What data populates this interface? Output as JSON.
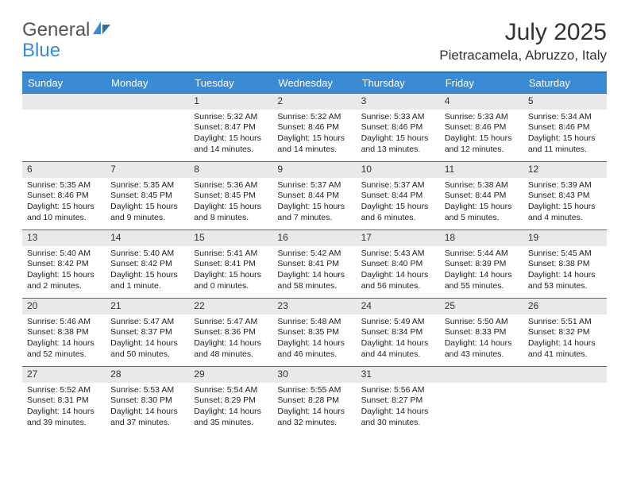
{
  "logo": {
    "text1": "General",
    "text2": "Blue"
  },
  "title": "July 2025",
  "location": "Pietracamela, Abruzzo, Italy",
  "colors": {
    "header_bg": "#3b8bd4",
    "header_border": "#2b6fb0",
    "daynum_bg": "#e9e9e9",
    "logo_blue": "#3b8bd4"
  },
  "weekdays": [
    "Sunday",
    "Monday",
    "Tuesday",
    "Wednesday",
    "Thursday",
    "Friday",
    "Saturday"
  ],
  "startOffset": 2,
  "days": [
    {
      "n": 1,
      "sr": "5:32 AM",
      "ss": "8:47 PM",
      "dl": "15 hours and 14 minutes."
    },
    {
      "n": 2,
      "sr": "5:32 AM",
      "ss": "8:46 PM",
      "dl": "15 hours and 14 minutes."
    },
    {
      "n": 3,
      "sr": "5:33 AM",
      "ss": "8:46 PM",
      "dl": "15 hours and 13 minutes."
    },
    {
      "n": 4,
      "sr": "5:33 AM",
      "ss": "8:46 PM",
      "dl": "15 hours and 12 minutes."
    },
    {
      "n": 5,
      "sr": "5:34 AM",
      "ss": "8:46 PM",
      "dl": "15 hours and 11 minutes."
    },
    {
      "n": 6,
      "sr": "5:35 AM",
      "ss": "8:46 PM",
      "dl": "15 hours and 10 minutes."
    },
    {
      "n": 7,
      "sr": "5:35 AM",
      "ss": "8:45 PM",
      "dl": "15 hours and 9 minutes."
    },
    {
      "n": 8,
      "sr": "5:36 AM",
      "ss": "8:45 PM",
      "dl": "15 hours and 8 minutes."
    },
    {
      "n": 9,
      "sr": "5:37 AM",
      "ss": "8:44 PM",
      "dl": "15 hours and 7 minutes."
    },
    {
      "n": 10,
      "sr": "5:37 AM",
      "ss": "8:44 PM",
      "dl": "15 hours and 6 minutes."
    },
    {
      "n": 11,
      "sr": "5:38 AM",
      "ss": "8:44 PM",
      "dl": "15 hours and 5 minutes."
    },
    {
      "n": 12,
      "sr": "5:39 AM",
      "ss": "8:43 PM",
      "dl": "15 hours and 4 minutes."
    },
    {
      "n": 13,
      "sr": "5:40 AM",
      "ss": "8:42 PM",
      "dl": "15 hours and 2 minutes."
    },
    {
      "n": 14,
      "sr": "5:40 AM",
      "ss": "8:42 PM",
      "dl": "15 hours and 1 minute."
    },
    {
      "n": 15,
      "sr": "5:41 AM",
      "ss": "8:41 PM",
      "dl": "15 hours and 0 minutes."
    },
    {
      "n": 16,
      "sr": "5:42 AM",
      "ss": "8:41 PM",
      "dl": "14 hours and 58 minutes."
    },
    {
      "n": 17,
      "sr": "5:43 AM",
      "ss": "8:40 PM",
      "dl": "14 hours and 56 minutes."
    },
    {
      "n": 18,
      "sr": "5:44 AM",
      "ss": "8:39 PM",
      "dl": "14 hours and 55 minutes."
    },
    {
      "n": 19,
      "sr": "5:45 AM",
      "ss": "8:38 PM",
      "dl": "14 hours and 53 minutes."
    },
    {
      "n": 20,
      "sr": "5:46 AM",
      "ss": "8:38 PM",
      "dl": "14 hours and 52 minutes."
    },
    {
      "n": 21,
      "sr": "5:47 AM",
      "ss": "8:37 PM",
      "dl": "14 hours and 50 minutes."
    },
    {
      "n": 22,
      "sr": "5:47 AM",
      "ss": "8:36 PM",
      "dl": "14 hours and 48 minutes."
    },
    {
      "n": 23,
      "sr": "5:48 AM",
      "ss": "8:35 PM",
      "dl": "14 hours and 46 minutes."
    },
    {
      "n": 24,
      "sr": "5:49 AM",
      "ss": "8:34 PM",
      "dl": "14 hours and 44 minutes."
    },
    {
      "n": 25,
      "sr": "5:50 AM",
      "ss": "8:33 PM",
      "dl": "14 hours and 43 minutes."
    },
    {
      "n": 26,
      "sr": "5:51 AM",
      "ss": "8:32 PM",
      "dl": "14 hours and 41 minutes."
    },
    {
      "n": 27,
      "sr": "5:52 AM",
      "ss": "8:31 PM",
      "dl": "14 hours and 39 minutes."
    },
    {
      "n": 28,
      "sr": "5:53 AM",
      "ss": "8:30 PM",
      "dl": "14 hours and 37 minutes."
    },
    {
      "n": 29,
      "sr": "5:54 AM",
      "ss": "8:29 PM",
      "dl": "14 hours and 35 minutes."
    },
    {
      "n": 30,
      "sr": "5:55 AM",
      "ss": "8:28 PM",
      "dl": "14 hours and 32 minutes."
    },
    {
      "n": 31,
      "sr": "5:56 AM",
      "ss": "8:27 PM",
      "dl": "14 hours and 30 minutes."
    }
  ],
  "labels": {
    "sunrise": "Sunrise:",
    "sunset": "Sunset:",
    "daylight": "Daylight:"
  }
}
